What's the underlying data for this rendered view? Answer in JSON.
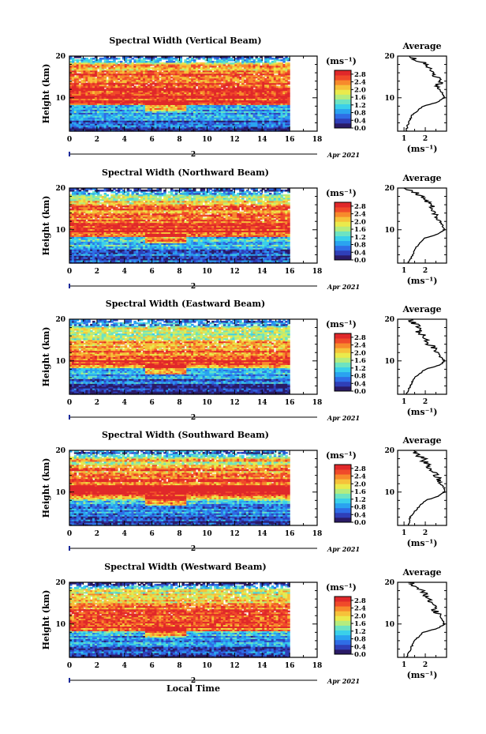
{
  "chart_data": [
    {
      "type": "heatmap",
      "title": "Spectral Width (Vertical Beam)",
      "ylabel": "Height (km)",
      "xlabel": "",
      "x_ticks": [
        0,
        2,
        4,
        6,
        8,
        10,
        12,
        14,
        16,
        18
      ],
      "xlim": [
        0,
        18
      ],
      "data_x_extent": [
        0,
        16
      ],
      "y_ticks": [
        10,
        20
      ],
      "ylim": [
        2,
        20
      ],
      "date_marker": "2",
      "date_label": "Apr 2021",
      "colorbar": {
        "unit": "(ms⁻¹)",
        "ticks": [
          "0.0",
          "0.4",
          "0.8",
          "1.2",
          "1.6",
          "2.0",
          "2.4",
          "2.8"
        ],
        "range": [
          0.0,
          3.0
        ]
      },
      "profile_height_km": [
        2,
        4,
        6,
        8,
        9,
        10,
        11,
        12,
        13,
        14,
        15,
        16,
        17,
        18,
        19,
        20
      ],
      "profile_width_ms": [
        1.1,
        1.2,
        1.4,
        1.9,
        2.6,
        2.9,
        2.8,
        2.7,
        2.6,
        2.7,
        2.5,
        2.4,
        2.2,
        2.1,
        1.6,
        1.4
      ],
      "average": {
        "title": "Average",
        "unit": "(ms⁻¹)",
        "x_ticks": [
          1,
          2
        ],
        "xlim": [
          0.7,
          3.0
        ],
        "y_ticks": [
          10,
          20
        ]
      }
    },
    {
      "type": "heatmap",
      "title": "Spectral Width (Northward Beam)",
      "ylabel": "Height (km)",
      "xlabel": "",
      "x_ticks": [
        0,
        2,
        4,
        6,
        8,
        10,
        12,
        14,
        16,
        18
      ],
      "xlim": [
        0,
        18
      ],
      "data_x_extent": [
        0,
        16
      ],
      "y_ticks": [
        10,
        20
      ],
      "ylim": [
        2,
        20
      ],
      "date_marker": "2",
      "date_label": "Apr 2021",
      "colorbar": {
        "unit": "(ms⁻¹)",
        "ticks": [
          "0.0",
          "0.4",
          "0.8",
          "1.2",
          "1.6",
          "2.0",
          "2.4",
          "2.8"
        ],
        "range": [
          0.0,
          3.0
        ]
      },
      "profile_height_km": [
        2,
        4,
        6,
        8,
        9,
        10,
        11,
        12,
        13,
        14,
        15,
        16,
        17,
        18,
        19,
        20
      ],
      "profile_width_ms": [
        1.2,
        1.4,
        1.6,
        2.0,
        2.6,
        2.9,
        2.8,
        2.7,
        2.6,
        2.5,
        2.4,
        2.2,
        2.0,
        1.8,
        1.5,
        1.1
      ],
      "average": {
        "title": "Average",
        "unit": "(ms⁻¹)",
        "x_ticks": [
          1,
          2
        ],
        "xlim": [
          0.7,
          3.0
        ],
        "y_ticks": [
          10,
          20
        ]
      }
    },
    {
      "type": "heatmap",
      "title": "Spectral Width (Eastward Beam)",
      "ylabel": "Height (km)",
      "xlabel": "",
      "x_ticks": [
        0,
        2,
        4,
        6,
        8,
        10,
        12,
        14,
        16,
        18
      ],
      "xlim": [
        0,
        18
      ],
      "data_x_extent": [
        0,
        16
      ],
      "y_ticks": [
        10,
        20
      ],
      "ylim": [
        2,
        20
      ],
      "date_marker": "2",
      "date_label": "Apr 2021",
      "colorbar": {
        "unit": "(ms⁻¹)",
        "ticks": [
          "0.0",
          "0.4",
          "0.8",
          "1.2",
          "1.6",
          "2.0",
          "2.4",
          "2.8"
        ],
        "range": [
          0.0,
          3.0
        ]
      },
      "profile_height_km": [
        2,
        4,
        6,
        8,
        9,
        10,
        11,
        12,
        13,
        14,
        15,
        16,
        17,
        18,
        19,
        20
      ],
      "profile_width_ms": [
        1.1,
        1.3,
        1.5,
        2.0,
        2.7,
        2.9,
        2.7,
        2.6,
        2.4,
        2.2,
        2.0,
        1.9,
        1.7,
        1.8,
        1.5,
        1.3
      ],
      "average": {
        "title": "Average",
        "unit": "(ms⁻¹)",
        "x_ticks": [
          1,
          2
        ],
        "xlim": [
          0.7,
          3.0
        ],
        "y_ticks": [
          10,
          20
        ]
      }
    },
    {
      "type": "heatmap",
      "title": "Spectral Width (Southward Beam)",
      "ylabel": "Height (km)",
      "xlabel": "",
      "x_ticks": [
        0,
        2,
        4,
        6,
        8,
        10,
        12,
        14,
        16,
        18
      ],
      "xlim": [
        0,
        18
      ],
      "data_x_extent": [
        0,
        16
      ],
      "y_ticks": [
        10,
        20
      ],
      "ylim": [
        2,
        20
      ],
      "date_marker": "2",
      "date_label": "Apr 2021",
      "colorbar": {
        "unit": "(ms⁻¹)",
        "ticks": [
          "0.0",
          "0.4",
          "0.8",
          "1.2",
          "1.6",
          "2.0",
          "2.4",
          "2.8"
        ],
        "range": [
          0.0,
          3.0
        ]
      },
      "profile_height_km": [
        2,
        4,
        6,
        8,
        9,
        10,
        11,
        12,
        13,
        14,
        15,
        16,
        17,
        18,
        19,
        20
      ],
      "profile_width_ms": [
        1.2,
        1.3,
        1.6,
        2.0,
        2.6,
        2.9,
        2.9,
        2.7,
        2.6,
        2.5,
        2.4,
        2.2,
        2.0,
        1.9,
        1.6,
        1.3
      ],
      "average": {
        "title": "Average",
        "unit": "(ms⁻¹)",
        "x_ticks": [
          1,
          2
        ],
        "xlim": [
          0.7,
          3.0
        ],
        "y_ticks": [
          10,
          20
        ]
      }
    },
    {
      "type": "heatmap",
      "title": "Spectral Width (Westward Beam)",
      "ylabel": "Height (km)",
      "xlabel": "Local Time",
      "x_ticks": [
        0,
        2,
        4,
        6,
        8,
        10,
        12,
        14,
        16,
        18
      ],
      "xlim": [
        0,
        18
      ],
      "data_x_extent": [
        0,
        16
      ],
      "y_ticks": [
        10,
        20
      ],
      "ylim": [
        2,
        20
      ],
      "date_marker": "2",
      "date_label": "Apr 2021",
      "colorbar": {
        "unit": "(ms⁻¹)",
        "ticks": [
          "0.0",
          "0.4",
          "0.8",
          "1.2",
          "1.6",
          "2.0",
          "2.4",
          "2.8"
        ],
        "range": [
          0.0,
          3.0
        ]
      },
      "profile_height_km": [
        2,
        4,
        6,
        8,
        9,
        10,
        11,
        12,
        13,
        14,
        15,
        16,
        17,
        18,
        19,
        20
      ],
      "profile_width_ms": [
        1.1,
        1.3,
        1.5,
        1.9,
        2.6,
        2.9,
        2.8,
        2.7,
        2.5,
        2.4,
        2.3,
        2.1,
        2.0,
        1.8,
        1.5,
        1.3
      ],
      "average": {
        "title": "Average",
        "unit": "(ms⁻¹)",
        "x_ticks": [
          1,
          2
        ],
        "xlim": [
          0.7,
          3.0
        ],
        "y_ticks": [
          10,
          20
        ]
      }
    }
  ],
  "colormap": [
    "#2a1a66",
    "#2f3fb8",
    "#2f6de6",
    "#2aa3f0",
    "#3ad0ea",
    "#6de3c2",
    "#b5ec7e",
    "#eaea4c",
    "#f6c23a",
    "#f78a2c",
    "#f04a2a",
    "#e0282a"
  ]
}
